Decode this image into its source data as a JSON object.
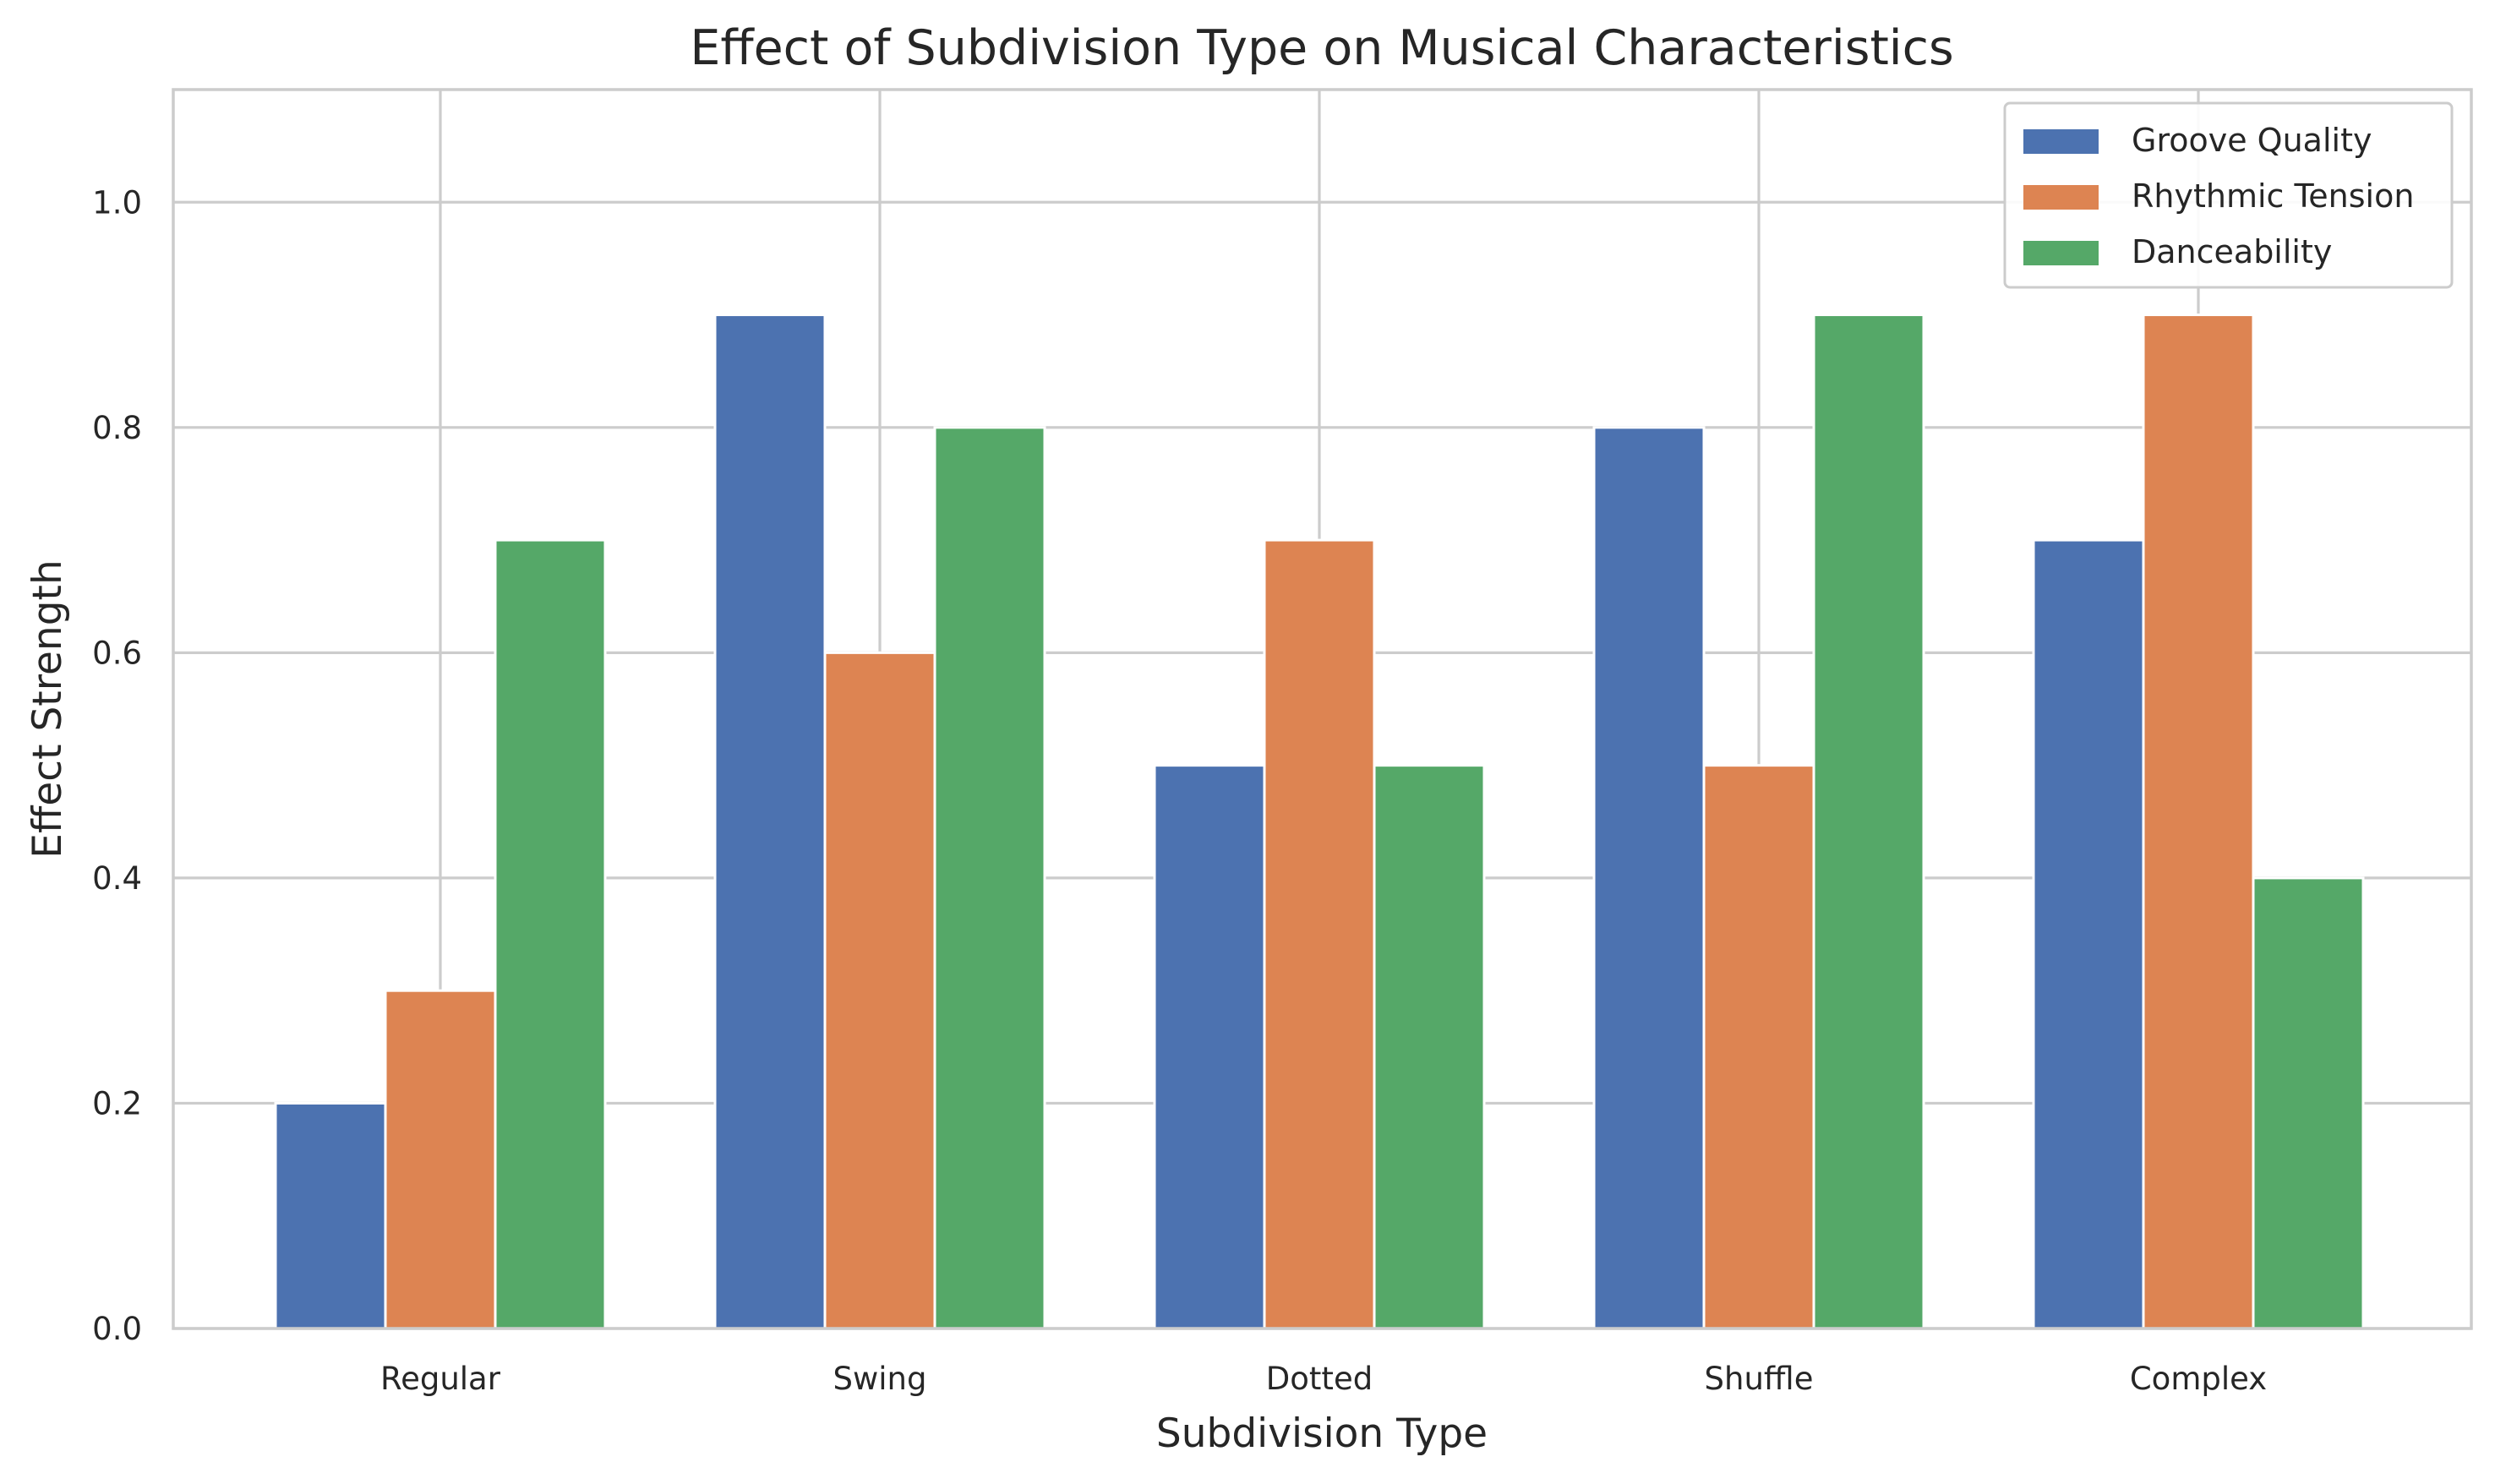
{
  "chart_data": {
    "type": "bar",
    "title": "Effect of Subdivision Type on Musical Characteristics",
    "xlabel": "Subdivision Type",
    "ylabel": "Effect Strength",
    "categories": [
      "Regular",
      "Swing",
      "Dotted",
      "Shuffle",
      "Complex"
    ],
    "series": [
      {
        "name": "Groove Quality",
        "color": "#4c72b0",
        "values": [
          0.2,
          0.9,
          0.5,
          0.8,
          0.7
        ]
      },
      {
        "name": "Rhythmic Tension",
        "color": "#dd8452",
        "values": [
          0.3,
          0.6,
          0.7,
          0.5,
          0.9
        ]
      },
      {
        "name": "Danceability",
        "color": "#55a868",
        "values": [
          0.7,
          0.8,
          0.5,
          0.9,
          0.4
        ]
      }
    ],
    "ylim": [
      0,
      1.1
    ],
    "yticks": [
      "0.0",
      "0.2",
      "0.4",
      "0.6",
      "0.8",
      "1.0"
    ],
    "grid": true,
    "legend_position": "top-right"
  }
}
